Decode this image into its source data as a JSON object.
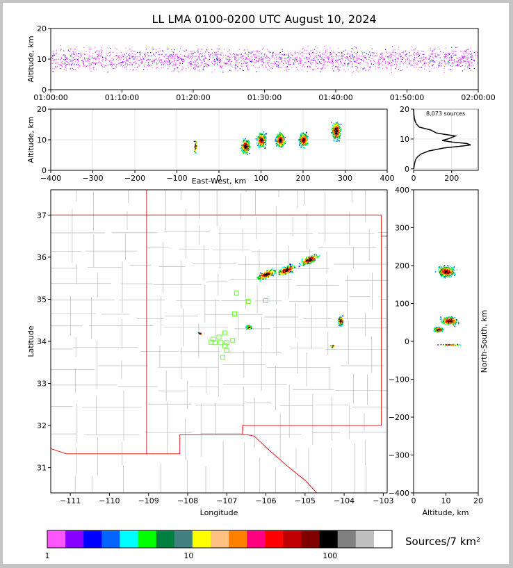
{
  "chart_data": {
    "type": "scatter",
    "title": "LL LMA 0100-0200 UTC August 10, 2024",
    "panels": {
      "time_height": {
        "ylabel": "Altitude, km",
        "ylim": [
          0,
          20
        ],
        "yticks": [
          "0",
          "10",
          "20"
        ],
        "xticks": [
          "01:00:00",
          "01:10:00",
          "01:20:00",
          "01:30:00",
          "01:40:00",
          "01:50:00",
          "02:00:00"
        ]
      },
      "ew_height": {
        "ylabel": "Altitude, km",
        "xlabel": "East-West, km",
        "xlim": [
          -400,
          400
        ],
        "ylim": [
          0,
          20
        ],
        "xticks": [
          "−400",
          "−300",
          "−200",
          "−100",
          "0",
          "100",
          "200",
          "300",
          "400"
        ],
        "yticks": [
          "0",
          "10",
          "20"
        ],
        "clusters": [
          {
            "x": -57,
            "z": 8
          },
          {
            "x": 62,
            "z": 8
          },
          {
            "x": 100,
            "z": 10
          },
          {
            "x": 145,
            "z": 10
          },
          {
            "x": 200,
            "z": 10
          },
          {
            "x": 278,
            "z": 13
          }
        ]
      },
      "histogram": {
        "label": "8,073 sources",
        "xticks": [
          "0",
          "200"
        ],
        "yticks": [
          "0",
          "10",
          "20"
        ],
        "profile": [
          [
            0,
            1
          ],
          [
            1,
            3
          ],
          [
            2,
            6
          ],
          [
            3,
            10
          ],
          [
            4,
            20
          ],
          [
            5,
            40
          ],
          [
            6,
            80
          ],
          [
            7,
            160
          ],
          [
            7.6,
            250
          ],
          [
            8,
            300
          ],
          [
            8.5,
            280
          ],
          [
            9,
            200
          ],
          [
            9.5,
            150
          ],
          [
            10,
            180
          ],
          [
            11,
            220
          ],
          [
            11.5,
            170
          ],
          [
            12,
            120
          ],
          [
            13,
            90
          ],
          [
            14,
            30
          ],
          [
            15,
            15
          ],
          [
            16,
            8
          ],
          [
            17,
            4
          ],
          [
            18,
            2
          ],
          [
            19,
            1
          ],
          [
            20,
            0
          ]
        ]
      },
      "plan": {
        "xlabel": "Longitude",
        "ylabel": "Latitude",
        "xlim": [
          -111.5,
          -102.9
        ],
        "ylim": [
          30.4,
          37.6
        ],
        "xticks": [
          "−111",
          "−110",
          "−109",
          "−108",
          "−107",
          "−106",
          "−105",
          "−104",
          "−103"
        ],
        "yticks": [
          "31",
          "32",
          "33",
          "34",
          "35",
          "36",
          "37"
        ],
        "clusters": [
          {
            "lon": -106.0,
            "lat": 35.6
          },
          {
            "lon": -105.5,
            "lat": 35.7
          },
          {
            "lon": -104.9,
            "lat": 35.95
          },
          {
            "lon": -104.1,
            "lat": 34.5
          },
          {
            "lon": -106.45,
            "lat": 34.35
          },
          {
            "lon": -107.7,
            "lat": 34.2
          },
          {
            "lon": -104.3,
            "lat": 33.9
          }
        ],
        "stations": [
          [
            -106.75,
            35.15
          ],
          [
            -106.45,
            34.95
          ],
          [
            -106.0,
            34.97
          ],
          [
            -106.8,
            34.65
          ],
          [
            -107.05,
            34.2
          ],
          [
            -107.2,
            34.1
          ],
          [
            -107.35,
            34.05
          ],
          [
            -107.4,
            33.98
          ],
          [
            -107.3,
            33.97
          ],
          [
            -107.15,
            33.97
          ],
          [
            -107.0,
            33.97
          ],
          [
            -106.85,
            34.02
          ],
          [
            -107.05,
            33.9
          ],
          [
            -107.0,
            33.78
          ],
          [
            -107.1,
            33.62
          ]
        ]
      },
      "ns_height": {
        "xlabel": "Altitude, km",
        "ylabel": "North-South, km",
        "xlim": [
          0,
          20
        ],
        "ylim": [
          -400,
          400
        ],
        "xticks": [
          "0",
          "10",
          "20"
        ],
        "yticks": [
          "400",
          "300",
          "200",
          "100",
          "0",
          "−100",
          "−200",
          "−300",
          "−400"
        ]
      }
    },
    "colorbar": {
      "label": "Sources/7 km²",
      "ticks": [
        "1",
        "10",
        "100"
      ],
      "colors": [
        "#ff55ff",
        "#8800ff",
        "#0000ff",
        "#0066ff",
        "#00ffff",
        "#00ff00",
        "#008040",
        "#408080",
        "#ffff00",
        "#ffc080",
        "#ff8000",
        "#ff0080",
        "#ff0000",
        "#c00000",
        "#800000",
        "#000000",
        "#808080",
        "#c0c0c0",
        "#ffffff"
      ]
    }
  }
}
